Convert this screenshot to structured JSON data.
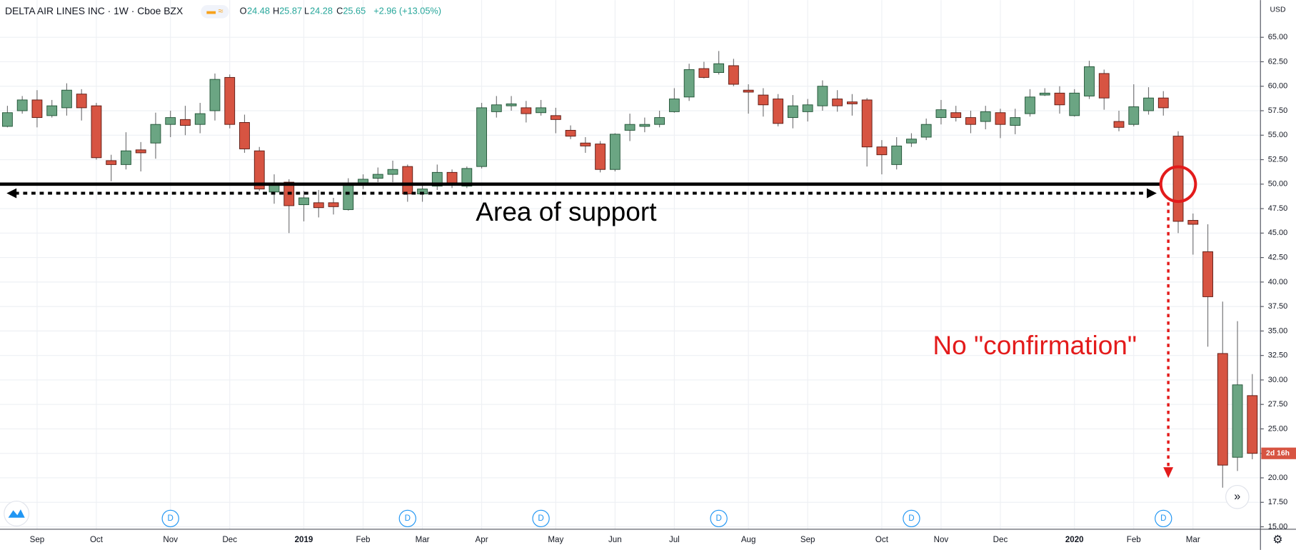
{
  "header": {
    "symbol": "DELTA AIR LINES INC · 1W · Cboe BZX",
    "open_label": "O",
    "open": 24.48,
    "high_label": "H",
    "high": 25.87,
    "low_label": "L",
    "low": 24.28,
    "close_label": "C",
    "close": 25.65,
    "change": "+2.96 (+13.05%)",
    "currency": "USD",
    "countdown": "2d 16h"
  },
  "chart_data": {
    "type": "candlestick",
    "categories": [
      null,
      null,
      "Sep",
      null,
      null,
      null,
      "Oct",
      null,
      null,
      null,
      null,
      "Nov",
      null,
      null,
      null,
      "Dec",
      null,
      null,
      null,
      null,
      "2019",
      null,
      null,
      null,
      "Feb",
      null,
      null,
      null,
      "Mar",
      null,
      null,
      null,
      "Apr",
      null,
      null,
      null,
      null,
      "May",
      null,
      null,
      null,
      "Jun",
      null,
      null,
      null,
      "Jul",
      null,
      null,
      null,
      null,
      "Aug",
      null,
      null,
      null,
      "Sep",
      null,
      null,
      null,
      null,
      "Oct",
      null,
      null,
      null,
      "Nov",
      null,
      null,
      null,
      "Dec",
      null,
      null,
      null,
      null,
      "2020",
      null,
      null,
      null,
      "Feb",
      null,
      null,
      null,
      "Mar",
      null,
      null,
      null,
      null
    ],
    "events": [
      null,
      null,
      null,
      null,
      null,
      null,
      null,
      null,
      null,
      null,
      null,
      "D",
      null,
      null,
      null,
      null,
      null,
      null,
      null,
      null,
      null,
      null,
      null,
      null,
      null,
      null,
      null,
      "D",
      null,
      null,
      null,
      null,
      null,
      null,
      null,
      null,
      "D",
      null,
      null,
      null,
      null,
      null,
      null,
      null,
      null,
      null,
      null,
      null,
      "D",
      null,
      null,
      null,
      null,
      null,
      null,
      null,
      null,
      null,
      null,
      null,
      null,
      "D",
      null,
      null,
      null,
      null,
      null,
      null,
      null,
      null,
      null,
      null,
      null,
      null,
      null,
      null,
      null,
      null,
      "D",
      null,
      null,
      null,
      null,
      null,
      null
    ],
    "open": [
      55.9,
      57.5,
      58.6,
      57,
      57.8,
      59.2,
      58,
      52.4,
      52,
      53.5,
      54.2,
      56.1,
      56.6,
      56.1,
      57.5,
      60.9,
      56.3,
      53.4,
      49.2,
      50.2,
      47.9,
      48.1,
      48.1,
      47.4,
      50,
      50.6,
      51,
      51.8,
      49,
      49.8,
      51.2,
      49.8,
      51.8,
      57.4,
      58,
      57.8,
      57.3,
      57,
      55.5,
      54.2,
      54.1,
      51.5,
      55.5,
      55.9,
      56.1,
      57.4,
      58.9,
      61.8,
      61.4,
      62.1,
      59.6,
      59.1,
      58.7,
      56.8,
      57.4,
      58,
      58.7,
      58.4,
      58.6,
      53.8,
      52,
      54.2,
      54.8,
      56.8,
      57.3,
      56.8,
      56.4,
      57.3,
      56,
      57.2,
      59.1,
      59.3,
      57,
      59,
      61.3,
      56.4,
      56.1,
      57.5,
      58.8,
      54.9,
      46.3,
      43.1,
      32.7,
      22.1,
      28.4
    ],
    "high": [
      58,
      59,
      59.6,
      58.6,
      60.3,
      59.7,
      58.3,
      53,
      55.3,
      54.3,
      57.3,
      57.5,
      58,
      58.3,
      61.3,
      61.2,
      57.1,
      53.8,
      51,
      50.5,
      49.3,
      49.4,
      48.6,
      50.6,
      51,
      51.7,
      52.4,
      52,
      50,
      52,
      51.5,
      51.8,
      58.3,
      59,
      59,
      58.5,
      58.6,
      57.8,
      56,
      54.8,
      54.4,
      55.2,
      57.2,
      56.8,
      57.5,
      59.8,
      62.3,
      62.5,
      63.6,
      62.8,
      60.2,
      59.8,
      59.2,
      59.1,
      58.7,
      60.6,
      59.6,
      59.2,
      58.8,
      54.5,
      54.8,
      55.2,
      56.7,
      58.6,
      58,
      57.5,
      58,
      57.7,
      57.7,
      59.7,
      59.8,
      60,
      59.7,
      62.6,
      61.7,
      57.5,
      60.2,
      59.9,
      59.5,
      55.4,
      47,
      45.9,
      38,
      36,
      30.6
    ],
    "low": [
      55.8,
      57.2,
      55.8,
      56.8,
      57,
      56.5,
      52.5,
      50.3,
      51.5,
      51.3,
      52.6,
      54.8,
      55,
      55.2,
      56.5,
      55.7,
      53.2,
      49.3,
      48,
      45,
      46.2,
      46.6,
      46.9,
      47.3,
      49.5,
      50.2,
      50.2,
      48.2,
      48.2,
      49.4,
      49.6,
      49.6,
      51.6,
      56.8,
      57.5,
      56.3,
      57,
      55.2,
      54.6,
      53.2,
      51.2,
      51.3,
      54.4,
      55.3,
      55.8,
      57.3,
      58.5,
      60.8,
      61.2,
      60,
      57.2,
      56.9,
      55.9,
      55.7,
      56.4,
      57.5,
      57.4,
      57,
      51.8,
      51,
      51.5,
      53.8,
      54.5,
      56.1,
      56.4,
      55.2,
      55.6,
      54.7,
      55.1,
      56.9,
      59,
      57.2,
      56.9,
      58.7,
      57.6,
      55.4,
      55.9,
      57.1,
      57,
      45,
      42.8,
      33.4,
      19,
      20.7,
      21.9
    ],
    "close": [
      57.3,
      58.6,
      56.8,
      58,
      59.6,
      57.8,
      52.7,
      52,
      53.4,
      53.2,
      56.1,
      56.8,
      56,
      57.2,
      60.7,
      56.1,
      53.6,
      49.5,
      50,
      47.8,
      48.6,
      47.6,
      47.7,
      50,
      50.5,
      51,
      51.5,
      49,
      49.5,
      51.2,
      49.9,
      51.6,
      57.8,
      58.1,
      58.2,
      57.2,
      57.8,
      56.6,
      54.9,
      53.9,
      51.5,
      55.1,
      56.1,
      56.1,
      56.8,
      58.7,
      61.7,
      60.9,
      62.3,
      60.2,
      59.4,
      58.1,
      56.2,
      58,
      58.1,
      60,
      58,
      58.2,
      53.8,
      53,
      53.9,
      54.6,
      56.1,
      57.6,
      56.8,
      56.1,
      57.4,
      56.1,
      56.8,
      58.9,
      59.3,
      58.1,
      59.3,
      62,
      58.8,
      55.8,
      57.9,
      58.8,
      57.8,
      46.2,
      45.9,
      38.5,
      21.3,
      29.5,
      22.5
    ],
    "up_color": "#6ba583",
    "down_color": "#d75442",
    "ylim": [
      14.75,
      68.8
    ],
    "yticks": [
      {
        "value": 15,
        "label": "15.00"
      },
      {
        "value": 17.5,
        "label": "17.50"
      },
      {
        "value": 20,
        "label": "20.00"
      },
      {
        "value": 22.5,
        "label": "22.50"
      },
      {
        "value": 25,
        "label": "25.00"
      },
      {
        "value": 27.5,
        "label": "27.50"
      },
      {
        "value": 30,
        "label": "30.00"
      },
      {
        "value": 32.5,
        "label": "32.50"
      },
      {
        "value": 35,
        "label": "35.00"
      },
      {
        "value": 37.5,
        "label": "37.50"
      },
      {
        "value": 40,
        "label": "40.00"
      },
      {
        "value": 42.5,
        "label": "42.50"
      },
      {
        "value": 45,
        "label": "45.00"
      },
      {
        "value": 47.5,
        "label": "47.50"
      },
      {
        "value": 50,
        "label": "50.00"
      },
      {
        "value": 52.5,
        "label": "52.50"
      },
      {
        "value": 55,
        "label": "55.00"
      },
      {
        "value": 57.5,
        "label": "57.50"
      },
      {
        "value": 60,
        "label": "60.00"
      },
      {
        "value": 62.5,
        "label": "62.50"
      },
      {
        "value": 65,
        "label": "65.00"
      }
    ],
    "grid": true,
    "support_level": 50,
    "support_label": "Area of support",
    "confirmation_label": "No \"confirmation\""
  }
}
